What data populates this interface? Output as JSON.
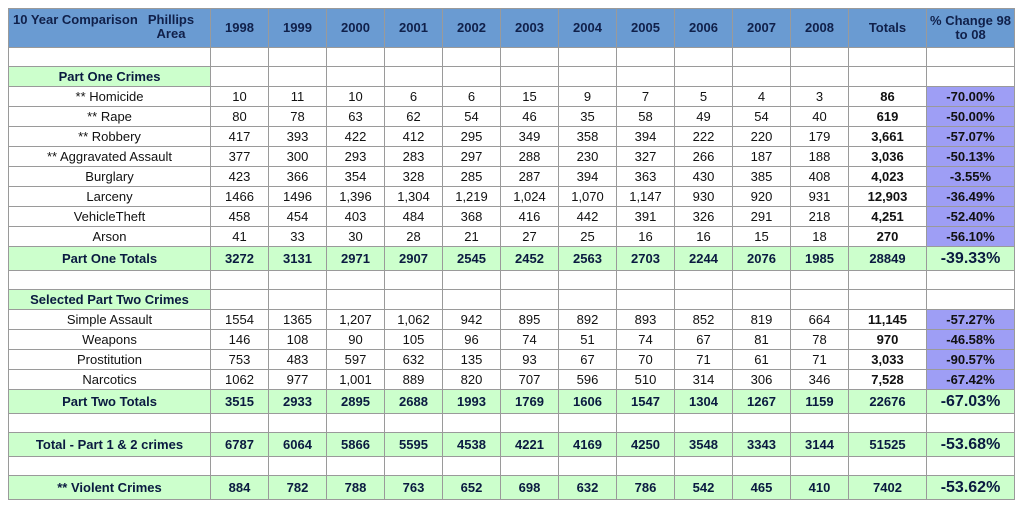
{
  "header": {
    "title": "10 Year Comparison",
    "area": "Phillips Area",
    "columns": [
      "1998",
      "1999",
      "2000",
      "2001",
      "2002",
      "2003",
      "2004",
      "2005",
      "2006",
      "2007",
      "2008",
      "Totals",
      "% Change 98 to 08"
    ]
  },
  "part_one": {
    "title": "Part One Crimes",
    "rows": [
      [
        "** Homicide",
        "10",
        "11",
        "10",
        "6",
        "6",
        "15",
        "9",
        "7",
        "5",
        "4",
        "3",
        "86",
        "-70.00%"
      ],
      [
        "** Rape",
        "80",
        "78",
        "63",
        "62",
        "54",
        "46",
        "35",
        "58",
        "49",
        "54",
        "40",
        "619",
        "-50.00%"
      ],
      [
        "** Robbery",
        "417",
        "393",
        "422",
        "412",
        "295",
        "349",
        "358",
        "394",
        "222",
        "220",
        "179",
        "3,661",
        "-57.07%"
      ],
      [
        "** Aggravated Assault",
        "377",
        "300",
        "293",
        "283",
        "297",
        "288",
        "230",
        "327",
        "266",
        "187",
        "188",
        "3,036",
        "-50.13%"
      ],
      [
        "Burglary",
        "423",
        "366",
        "354",
        "328",
        "285",
        "287",
        "394",
        "363",
        "430",
        "385",
        "408",
        "4,023",
        "-3.55%"
      ],
      [
        "Larceny",
        "1466",
        "1496",
        "1,396",
        "1,304",
        "1,219",
        "1,024",
        "1,070",
        "1,147",
        "930",
        "920",
        "931",
        "12,903",
        "-36.49%"
      ],
      [
        "VehicleTheft",
        "458",
        "454",
        "403",
        "484",
        "368",
        "416",
        "442",
        "391",
        "326",
        "291",
        "218",
        "4,251",
        "-52.40%"
      ],
      [
        "Arson",
        "41",
        "33",
        "30",
        "28",
        "21",
        "27",
        "25",
        "16",
        "16",
        "15",
        "18",
        "270",
        "-56.10%"
      ]
    ],
    "totals": [
      "Part One Totals",
      "3272",
      "3131",
      "2971",
      "2907",
      "2545",
      "2452",
      "2563",
      "2703",
      "2244",
      "2076",
      "1985",
      "28849",
      "-39.33%"
    ]
  },
  "part_two": {
    "title": "Selected Part Two Crimes",
    "rows": [
      [
        "Simple Assault",
        "1554",
        "1365",
        "1,207",
        "1,062",
        "942",
        "895",
        "892",
        "893",
        "852",
        "819",
        "664",
        "11,145",
        "-57.27%"
      ],
      [
        "Weapons",
        "146",
        "108",
        "90",
        "105",
        "96",
        "74",
        "51",
        "74",
        "67",
        "81",
        "78",
        "970",
        "-46.58%"
      ],
      [
        "Prostitution",
        "753",
        "483",
        "597",
        "632",
        "135",
        "93",
        "67",
        "70",
        "71",
        "61",
        "71",
        "3,033",
        "-90.57%"
      ],
      [
        "Narcotics",
        "1062",
        "977",
        "1,001",
        "889",
        "820",
        "707",
        "596",
        "510",
        "314",
        "306",
        "346",
        "7,528",
        "-67.42%"
      ]
    ],
    "totals": [
      "Part Two Totals",
      "3515",
      "2933",
      "2895",
      "2688",
      "1993",
      "1769",
      "1606",
      "1547",
      "1304",
      "1267",
      "1159",
      "22676",
      "-67.03%"
    ]
  },
  "grand_total": [
    "Total - Part 1 & 2 crimes",
    "6787",
    "6064",
    "5866",
    "5595",
    "4538",
    "4221",
    "4169",
    "4250",
    "3548",
    "3343",
    "3144",
    "51525",
    "-53.68%"
  ],
  "violent": [
    "** Violent Crimes",
    "884",
    "782",
    "788",
    "763",
    "652",
    "698",
    "632",
    "786",
    "542",
    "465",
    "410",
    "7402",
    "-53.62%"
  ]
}
